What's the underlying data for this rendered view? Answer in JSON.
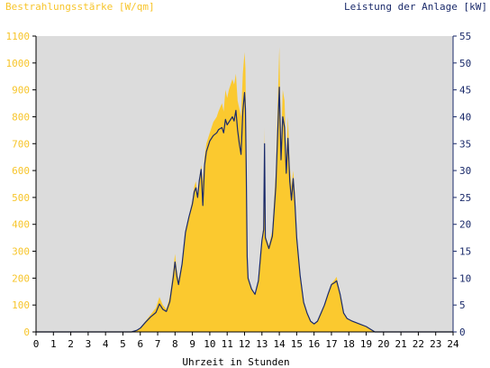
{
  "chart_data": {
    "type": "area",
    "left_title": "Bestrahlungsstärke [W/qm]",
    "right_title": "Leistung der Anlage [kW]",
    "xlabel": "Uhrzeit in Stunden",
    "xlim": [
      0,
      24
    ],
    "y_left_lim": [
      0,
      1100
    ],
    "y_right_lim": [
      0,
      55
    ],
    "x_ticks": [
      "0",
      "1",
      "2",
      "3",
      "4",
      "5",
      "6",
      "7",
      "8",
      "9",
      "10",
      "11",
      "12",
      "13",
      "14",
      "15",
      "16",
      "17",
      "18",
      "19",
      "20",
      "21",
      "22",
      "23",
      "24"
    ],
    "y_left_ticks": [
      "0",
      "100",
      "200",
      "300",
      "400",
      "500",
      "600",
      "700",
      "800",
      "900",
      "1000",
      "1100"
    ],
    "y_right_ticks": [
      "0",
      "5",
      "10",
      "15",
      "20",
      "25",
      "30",
      "35",
      "40",
      "45",
      "50",
      "55"
    ],
    "colors": {
      "plot_background": "#dcdcdc",
      "irradiance": "#fbc92f",
      "power": "#1a2a6a",
      "left_axis_text": "#f7c52b",
      "right_axis_text": "#1a2a6a"
    },
    "series": [
      {
        "name": "Bestrahlungsstärke",
        "axis": "left",
        "style": "area",
        "points": [
          [
            0,
            0
          ],
          [
            5.5,
            0
          ],
          [
            5.8,
            5
          ],
          [
            6.0,
            15
          ],
          [
            6.3,
            40
          ],
          [
            6.6,
            65
          ],
          [
            6.9,
            90
          ],
          [
            7.1,
            130
          ],
          [
            7.3,
            100
          ],
          [
            7.5,
            85
          ],
          [
            7.7,
            130
          ],
          [
            7.9,
            230
          ],
          [
            8.0,
            290
          ],
          [
            8.1,
            230
          ],
          [
            8.2,
            190
          ],
          [
            8.4,
            260
          ],
          [
            8.6,
            380
          ],
          [
            8.8,
            430
          ],
          [
            9.0,
            490
          ],
          [
            9.1,
            540
          ],
          [
            9.2,
            560
          ],
          [
            9.3,
            510
          ],
          [
            9.4,
            570
          ],
          [
            9.5,
            620
          ],
          [
            9.6,
            560
          ],
          [
            9.7,
            650
          ],
          [
            9.8,
            700
          ],
          [
            10.0,
            740
          ],
          [
            10.2,
            780
          ],
          [
            10.4,
            800
          ],
          [
            10.5,
            820
          ],
          [
            10.7,
            850
          ],
          [
            10.8,
            820
          ],
          [
            10.9,
            900
          ],
          [
            11.0,
            870
          ],
          [
            11.1,
            900
          ],
          [
            11.3,
            940
          ],
          [
            11.4,
            920
          ],
          [
            11.5,
            960
          ],
          [
            11.6,
            860
          ],
          [
            11.7,
            830
          ],
          [
            11.8,
            800
          ],
          [
            11.9,
            960
          ],
          [
            12.0,
            1040
          ],
          [
            12.05,
            980
          ],
          [
            12.1,
            700
          ],
          [
            12.15,
            300
          ],
          [
            12.2,
            200
          ],
          [
            12.4,
            160
          ],
          [
            12.6,
            140
          ],
          [
            12.8,
            200
          ],
          [
            13.0,
            350
          ],
          [
            13.1,
            400
          ],
          [
            13.15,
            760
          ],
          [
            13.2,
            360
          ],
          [
            13.4,
            320
          ],
          [
            13.6,
            380
          ],
          [
            13.8,
            600
          ],
          [
            14.0,
            1060
          ],
          [
            14.1,
            700
          ],
          [
            14.2,
            900
          ],
          [
            14.3,
            860
          ],
          [
            14.4,
            650
          ],
          [
            14.5,
            800
          ],
          [
            14.6,
            620
          ],
          [
            14.7,
            540
          ],
          [
            14.8,
            600
          ],
          [
            14.9,
            520
          ],
          [
            15.0,
            360
          ],
          [
            15.2,
            220
          ],
          [
            15.4,
            110
          ],
          [
            15.6,
            70
          ],
          [
            15.8,
            40
          ],
          [
            16.0,
            30
          ],
          [
            16.2,
            40
          ],
          [
            16.4,
            70
          ],
          [
            16.6,
            100
          ],
          [
            16.8,
            140
          ],
          [
            17.0,
            180
          ],
          [
            17.2,
            195
          ],
          [
            17.3,
            205
          ],
          [
            17.5,
            140
          ],
          [
            17.7,
            70
          ],
          [
            17.9,
            50
          ],
          [
            18.2,
            40
          ],
          [
            18.6,
            30
          ],
          [
            19.0,
            20
          ],
          [
            19.3,
            8
          ],
          [
            19.5,
            0
          ],
          [
            24,
            0
          ]
        ]
      },
      {
        "name": "Leistung",
        "axis": "right",
        "style": "line",
        "points": [
          [
            0,
            0
          ],
          [
            5.5,
            0
          ],
          [
            5.8,
            0.3
          ],
          [
            6.0,
            0.7
          ],
          [
            6.3,
            1.8
          ],
          [
            6.6,
            2.8
          ],
          [
            6.9,
            3.6
          ],
          [
            7.1,
            5.2
          ],
          [
            7.3,
            4.2
          ],
          [
            7.5,
            3.8
          ],
          [
            7.7,
            5.6
          ],
          [
            7.9,
            10.2
          ],
          [
            8.0,
            13.0
          ],
          [
            8.1,
            10.4
          ],
          [
            8.2,
            8.8
          ],
          [
            8.4,
            12.6
          ],
          [
            8.6,
            18.5
          ],
          [
            8.8,
            21.4
          ],
          [
            9.0,
            23.8
          ],
          [
            9.1,
            26.0
          ],
          [
            9.2,
            26.8
          ],
          [
            9.3,
            25.0
          ],
          [
            9.4,
            28.2
          ],
          [
            9.5,
            30.2
          ],
          [
            9.6,
            23.5
          ],
          [
            9.7,
            31.0
          ],
          [
            9.8,
            33.5
          ],
          [
            10.0,
            35.5
          ],
          [
            10.2,
            36.5
          ],
          [
            10.4,
            37.0
          ],
          [
            10.5,
            37.6
          ],
          [
            10.7,
            38.0
          ],
          [
            10.8,
            37.0
          ],
          [
            10.9,
            39.5
          ],
          [
            11.0,
            38.5
          ],
          [
            11.1,
            39.0
          ],
          [
            11.3,
            40.0
          ],
          [
            11.4,
            39.2
          ],
          [
            11.5,
            41.2
          ],
          [
            11.6,
            37.5
          ],
          [
            11.7,
            35.0
          ],
          [
            11.8,
            33.0
          ],
          [
            11.9,
            41.0
          ],
          [
            12.0,
            44.5
          ],
          [
            12.05,
            41.5
          ],
          [
            12.1,
            30.0
          ],
          [
            12.15,
            14.0
          ],
          [
            12.2,
            10.0
          ],
          [
            12.4,
            8.0
          ],
          [
            12.6,
            7.0
          ],
          [
            12.8,
            9.5
          ],
          [
            13.0,
            17.0
          ],
          [
            13.1,
            19.0
          ],
          [
            13.15,
            35.0
          ],
          [
            13.2,
            17.5
          ],
          [
            13.4,
            15.5
          ],
          [
            13.6,
            17.8
          ],
          [
            13.8,
            27.0
          ],
          [
            14.0,
            45.5
          ],
          [
            14.1,
            32.0
          ],
          [
            14.2,
            40.0
          ],
          [
            14.3,
            38.0
          ],
          [
            14.4,
            29.5
          ],
          [
            14.5,
            36.0
          ],
          [
            14.6,
            28.0
          ],
          [
            14.7,
            24.5
          ],
          [
            14.8,
            28.5
          ],
          [
            14.9,
            24.0
          ],
          [
            15.0,
            17.5
          ],
          [
            15.2,
            10.5
          ],
          [
            15.4,
            5.5
          ],
          [
            15.6,
            3.5
          ],
          [
            15.8,
            2.0
          ],
          [
            16.0,
            1.5
          ],
          [
            16.2,
            2.0
          ],
          [
            16.4,
            3.5
          ],
          [
            16.6,
            5.0
          ],
          [
            16.8,
            7.0
          ],
          [
            17.0,
            8.8
          ],
          [
            17.2,
            9.2
          ],
          [
            17.3,
            9.5
          ],
          [
            17.5,
            7.0
          ],
          [
            17.7,
            3.5
          ],
          [
            17.9,
            2.5
          ],
          [
            18.2,
            2.0
          ],
          [
            18.6,
            1.5
          ],
          [
            19.0,
            1.0
          ],
          [
            19.3,
            0.4
          ],
          [
            19.5,
            0
          ],
          [
            24,
            0
          ]
        ]
      }
    ]
  }
}
